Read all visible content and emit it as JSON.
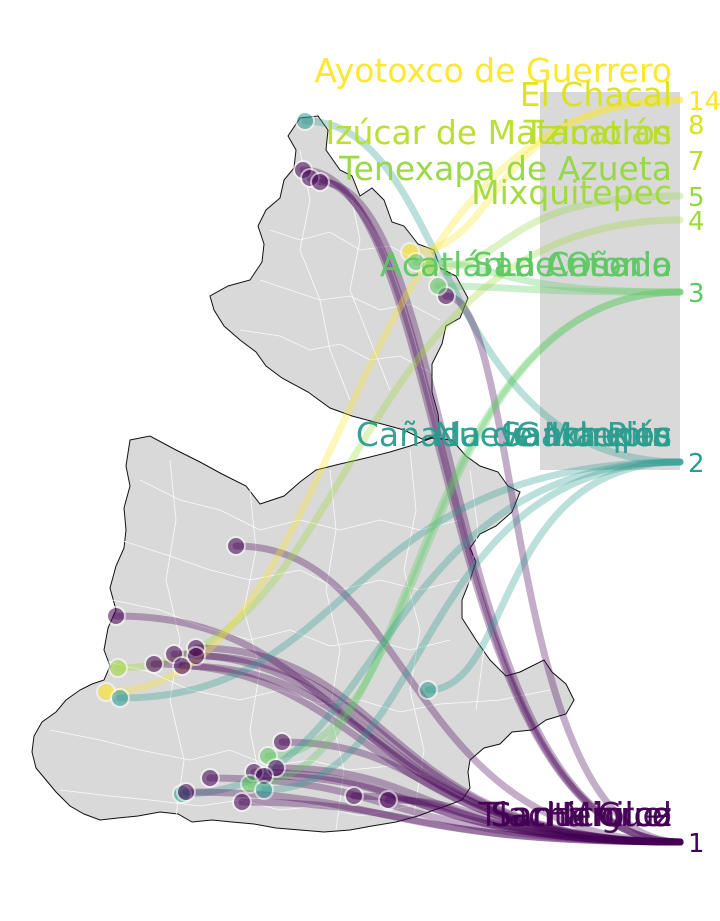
{
  "map": {
    "colors": {
      "base_fill": "#d9d9d9",
      "base_stroke": "#ffffff",
      "outline": "#111111"
    },
    "rank_groups": [
      {
        "rank": "14",
        "color": "#fde725"
      },
      {
        "rank": "8",
        "color": "#dde318"
      },
      {
        "rank": "7",
        "color": "#b8de29"
      },
      {
        "rank": "5",
        "color": "#95d840"
      },
      {
        "rank": "4",
        "color": "#a0da39"
      },
      {
        "rank": "3",
        "color": "#5ec962"
      },
      {
        "rank": "2",
        "color": "#2a9d8f"
      },
      {
        "rank": "1",
        "color": "#440154"
      }
    ],
    "labels": [
      {
        "text": "Ayotoxco de Guerrero",
        "rank": "14",
        "color": "#fde725"
      },
      {
        "text": "El Chacal",
        "rank": "8",
        "color": "#dde318"
      },
      {
        "text": "Izúcar de Matamoros",
        "rank": "7",
        "color": "#b8de29"
      },
      {
        "text": "Tzicatlán",
        "rank": "7",
        "color": "#b8de29"
      },
      {
        "text": "Tenexapa de Azueta",
        "rank": "5",
        "color": "#95d840"
      },
      {
        "text": "Mixquitepec",
        "rank": "4",
        "color": "#a0da39"
      },
      {
        "text": "San Antonio",
        "rank": "3",
        "color": "#5ec962"
      },
      {
        "text": "Acatlán de Osorio",
        "rank": "3",
        "color": "#5ec962"
      },
      {
        "text": "La Cañada",
        "rank": "3",
        "color": "#5ec962"
      },
      {
        "text": "Gachupín",
        "rank": "2",
        "color": "#2a9d8f"
      },
      {
        "text": "Cañada de Morelos",
        "rank": "2",
        "color": "#2a9d8f"
      },
      {
        "text": "Nuevo Ixtepec",
        "rank": "2",
        "color": "#2a9d8f"
      },
      {
        "text": "Santa Rita",
        "rank": "2",
        "color": "#2a9d8f"
      },
      {
        "text": "Heroica",
        "rank": "1",
        "color": "#440154"
      },
      {
        "text": "San Miguel",
        "rank": "1",
        "color": "#440154"
      },
      {
        "text": "Santa Cruz",
        "rank": "1",
        "color": "#440154"
      },
      {
        "text": "Tlachichilco",
        "rank": "1",
        "color": "#440154"
      }
    ]
  }
}
